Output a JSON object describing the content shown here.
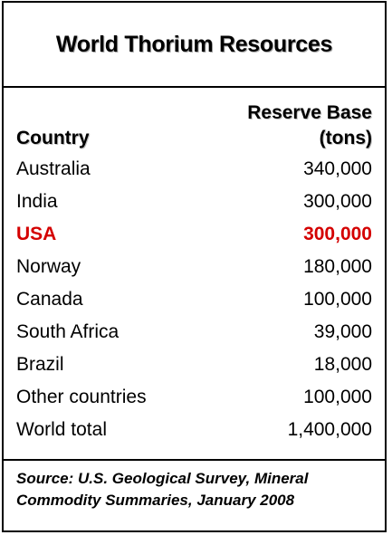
{
  "title": "World Thorium Resources",
  "table": {
    "headers": {
      "country": "Country",
      "reserve_line1": "Reserve Base",
      "reserve_line2": "(tons)"
    },
    "rows": [
      {
        "country": "Australia",
        "reserve": "340,000"
      },
      {
        "country": "India",
        "reserve": "300,000"
      },
      {
        "country": "USA",
        "reserve": "300,000"
      },
      {
        "country": "Norway",
        "reserve": "180,000"
      },
      {
        "country": "Canada",
        "reserve": "100,000"
      },
      {
        "country": "South Africa",
        "reserve": "39,000"
      },
      {
        "country": "Brazil",
        "reserve": "18,000"
      },
      {
        "country": "Other countries",
        "reserve": "100,000"
      },
      {
        "country": "World total",
        "reserve": "1,400,000"
      }
    ],
    "highlight_color": "#d40000"
  },
  "source": {
    "line1": "Source: U.S. Geological Survey, Mineral",
    "line2": "Commodity Summaries, January 2008"
  }
}
